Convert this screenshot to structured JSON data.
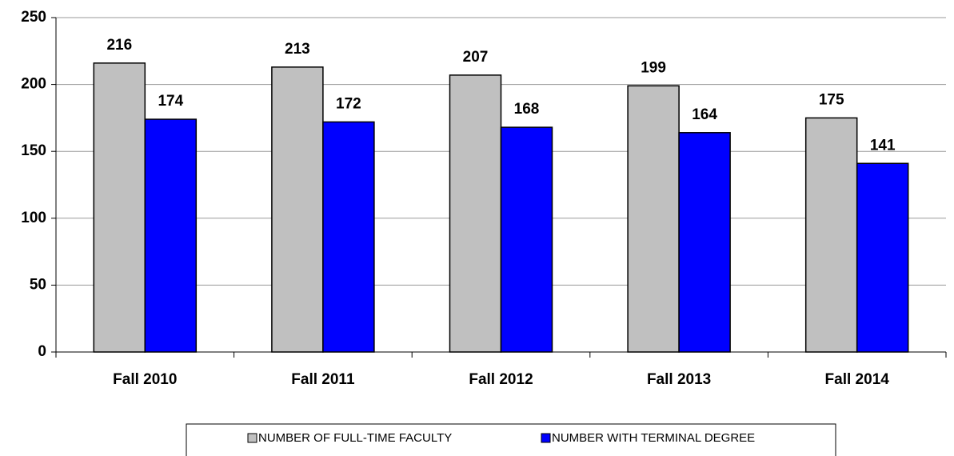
{
  "chart_data": {
    "type": "bar",
    "categories": [
      "Fall 2010",
      "Fall 2011",
      "Fall 2012",
      "Fall 2013",
      "Fall 2014"
    ],
    "series": [
      {
        "name": "NUMBER OF FULL-TIME FACULTY",
        "color": "#c0c0c0",
        "values": [
          216,
          213,
          207,
          199,
          175
        ]
      },
      {
        "name": "NUMBER WITH TERMINAL DEGREE",
        "color": "#0000ff",
        "values": [
          174,
          172,
          168,
          164,
          141
        ]
      }
    ],
    "ylim": [
      0,
      250
    ],
    "yticks": [
      0,
      50,
      100,
      150,
      200,
      250
    ],
    "grid": true,
    "legend": "bottom"
  }
}
